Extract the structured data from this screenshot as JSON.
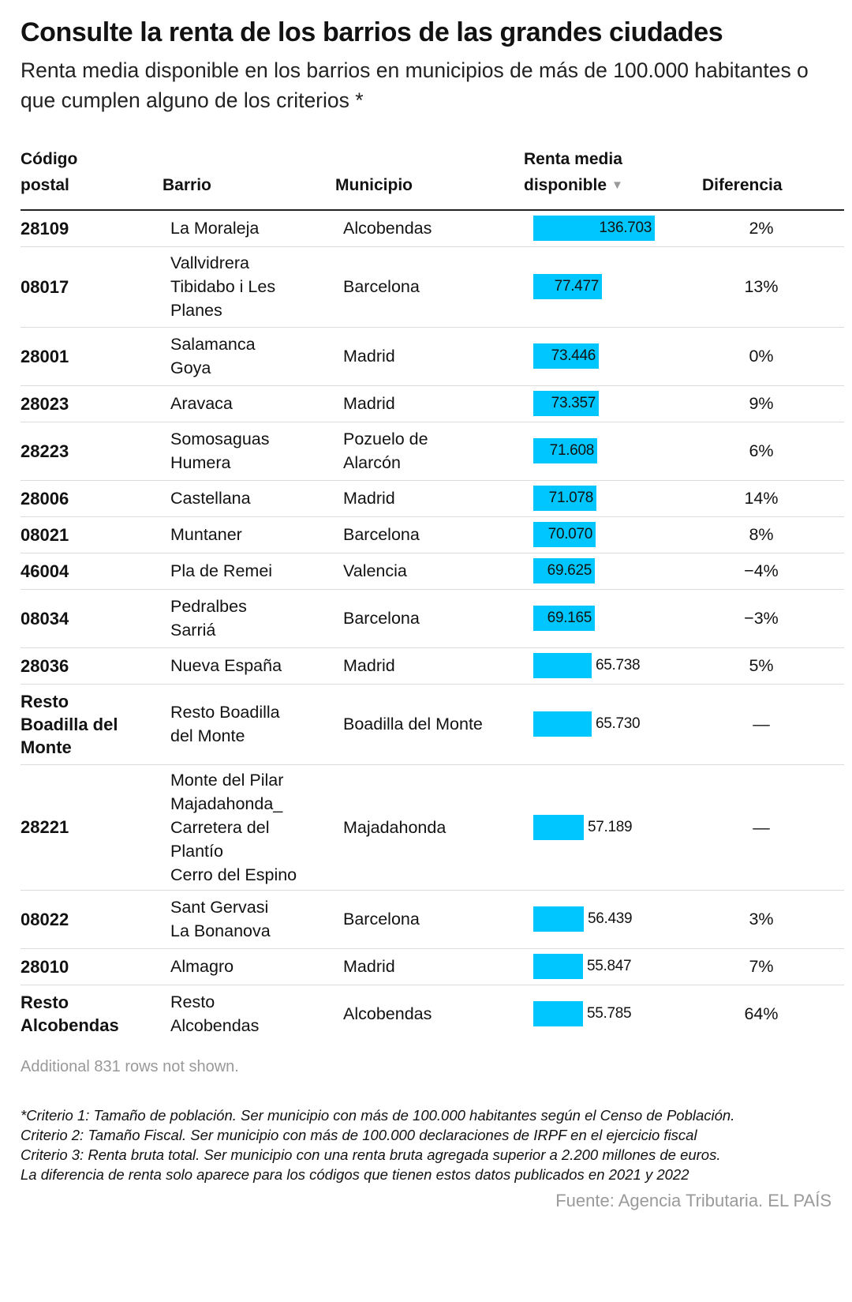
{
  "title": "Consulte la renta de los barrios de las grandes ciudades",
  "subtitle": "Renta media disponible en los barrios en municipios de más de 100.000 habitantes o que cumplen alguno de los criterios *",
  "headers": {
    "codigo": [
      "Código",
      "postal"
    ],
    "barrio": "Barrio",
    "municipio": "Municipio",
    "renta": [
      "Renta media",
      "disponible"
    ],
    "sort_icon": "▼",
    "diferencia": "Diferencia"
  },
  "colors": {
    "bar": "#00c6ff",
    "rule": "#222222",
    "muted": "#999999"
  },
  "chart_data": {
    "type": "table",
    "columns": [
      "Código postal",
      "Barrio",
      "Municipio",
      "Renta media disponible",
      "Diferencia"
    ],
    "rows": [
      {
        "code": [
          "28109"
        ],
        "barrio": [
          "La Moraleja"
        ],
        "municipio": [
          "Alcobendas"
        ],
        "renta": 136703,
        "renta_label": "136.703",
        "diff": "2%"
      },
      {
        "code": [
          "08017"
        ],
        "barrio": [
          "Vallvidrera",
          "Tibidabo i Les",
          "Planes"
        ],
        "municipio": [
          "Barcelona"
        ],
        "renta": 77477,
        "renta_label": "77.477",
        "diff": "13%"
      },
      {
        "code": [
          "28001"
        ],
        "barrio": [
          "Salamanca",
          "Goya"
        ],
        "municipio": [
          "Madrid"
        ],
        "renta": 73446,
        "renta_label": "73.446",
        "diff": "0%"
      },
      {
        "code": [
          "28023"
        ],
        "barrio": [
          "Aravaca"
        ],
        "municipio": [
          "Madrid"
        ],
        "renta": 73357,
        "renta_label": "73.357",
        "diff": "9%"
      },
      {
        "code": [
          "28223"
        ],
        "barrio": [
          "Somosaguas",
          "Humera"
        ],
        "municipio": [
          "Pozuelo de",
          "Alarcón"
        ],
        "renta": 71608,
        "renta_label": "71.608",
        "diff": "6%"
      },
      {
        "code": [
          "28006"
        ],
        "barrio": [
          "Castellana"
        ],
        "municipio": [
          "Madrid"
        ],
        "renta": 71078,
        "renta_label": "71.078",
        "diff": "14%"
      },
      {
        "code": [
          "08021"
        ],
        "barrio": [
          "Muntaner"
        ],
        "municipio": [
          "Barcelona"
        ],
        "renta": 70070,
        "renta_label": "70.070",
        "diff": "8%"
      },
      {
        "code": [
          "46004"
        ],
        "barrio": [
          "Pla de Remei"
        ],
        "municipio": [
          "Valencia"
        ],
        "renta": 69625,
        "renta_label": "69.625",
        "diff": "−4%"
      },
      {
        "code": [
          "08034"
        ],
        "barrio": [
          "Pedralbes",
          "Sarriá"
        ],
        "municipio": [
          "Barcelona"
        ],
        "renta": 69165,
        "renta_label": "69.165",
        "diff": "−3%"
      },
      {
        "code": [
          "28036"
        ],
        "barrio": [
          "Nueva España"
        ],
        "municipio": [
          "Madrid"
        ],
        "renta": 65738,
        "renta_label": "65.738",
        "diff": "5%"
      },
      {
        "code": [
          "Resto",
          "Boadilla del",
          "Monte"
        ],
        "barrio": [
          "Resto Boadilla",
          "del Monte"
        ],
        "municipio": [
          "Boadilla del Monte"
        ],
        "renta": 65730,
        "renta_label": "65.730",
        "diff": "—"
      },
      {
        "code": [
          "28221"
        ],
        "barrio": [
          "Monte del Pilar",
          "Majadahonda_",
          "Carretera del",
          "Plantío",
          "Cerro del Espino"
        ],
        "municipio": [
          "Majadahonda"
        ],
        "renta": 57189,
        "renta_label": "57.189",
        "diff": "—"
      },
      {
        "code": [
          "08022"
        ],
        "barrio": [
          "Sant Gervasi",
          "La Bonanova"
        ],
        "municipio": [
          "Barcelona"
        ],
        "renta": 56439,
        "renta_label": "56.439",
        "diff": "3%"
      },
      {
        "code": [
          "28010"
        ],
        "barrio": [
          "Almagro"
        ],
        "municipio": [
          "Madrid"
        ],
        "renta": 55847,
        "renta_label": "55.847",
        "diff": "7%"
      },
      {
        "code": [
          "Resto",
          "Alcobendas"
        ],
        "barrio": [
          "Resto",
          "Alcobendas"
        ],
        "municipio": [
          "Alcobendas"
        ],
        "renta": 55785,
        "renta_label": "55.785",
        "diff": "64%"
      }
    ],
    "bar_max": 136703
  },
  "note": "Additional 831 rows not shown.",
  "footnotes": [
    "*Criterio 1: Tamaño de población. Ser municipio con más de 100.000 habitantes según el Censo de Población.",
    "Criterio 2: Tamaño Fiscal. Ser municipio con más de 100.000 declaraciones de IRPF en el ejercicio fiscal",
    "Criterio 3: Renta bruta total. Ser municipio con una renta bruta agregada superior a 2.200 millones de euros.",
    "La diferencia de renta solo aparece para los códigos que tienen estos datos publicados en 2021 y 2022"
  ],
  "source": "Fuente: Agencia Tributaria. EL PAÍS"
}
